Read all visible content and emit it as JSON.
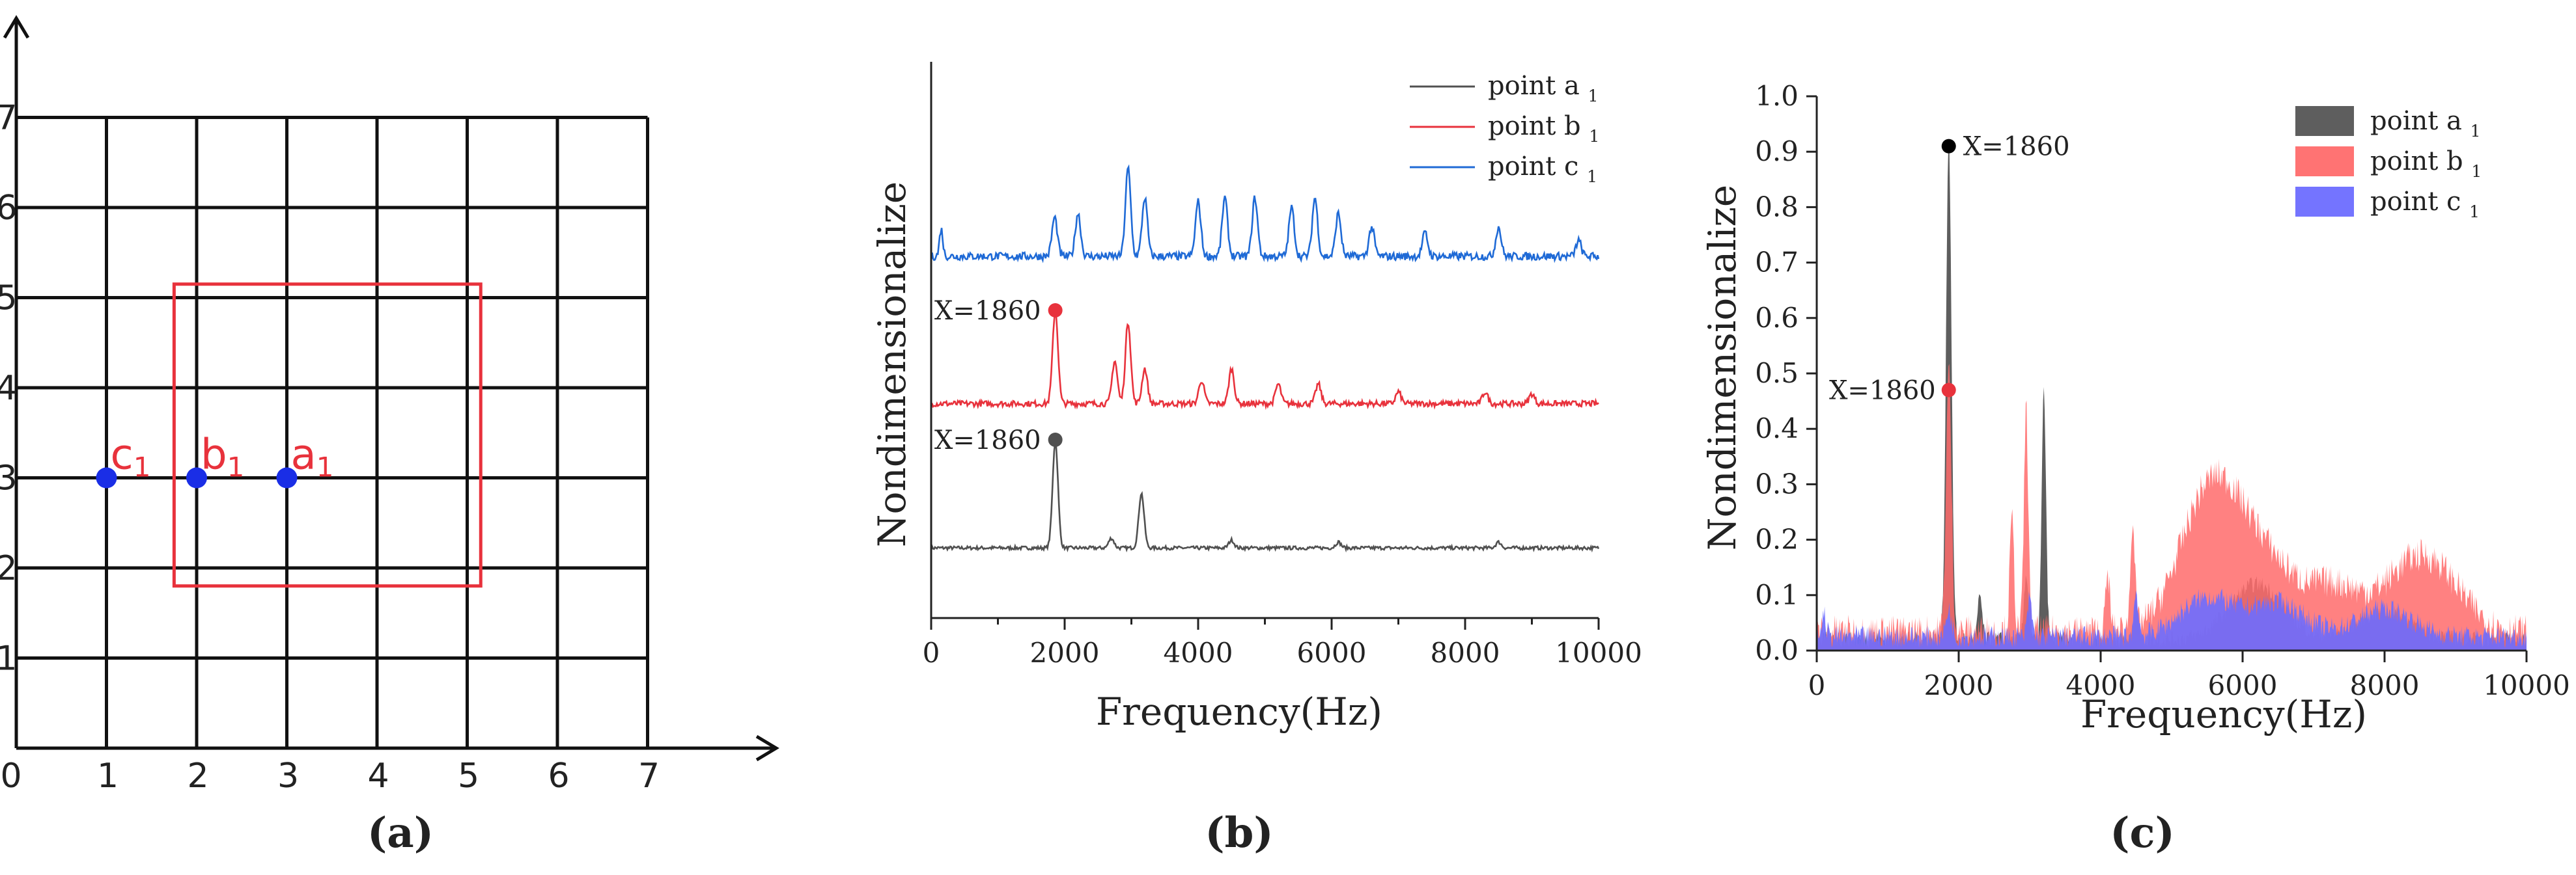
{
  "chart_data": [
    {
      "type": "grid-diagram",
      "panel_label": "(a)",
      "x_ticks": [
        "0",
        "1",
        "2",
        "3",
        "4",
        "5",
        "6",
        "7"
      ],
      "y_ticks": [
        "1",
        "2",
        "3",
        "4",
        "5",
        "6",
        "7"
      ],
      "grid_range": [
        0,
        7
      ],
      "highlight_box": {
        "x0": 1.75,
        "x1": 5.15,
        "y0": 1.8,
        "y1": 5.15,
        "color": "#e8323c"
      },
      "points": [
        {
          "label": "c",
          "sub": "1",
          "x": 1,
          "y": 3
        },
        {
          "label": "b",
          "sub": "1",
          "x": 2,
          "y": 3
        },
        {
          "label": "a",
          "sub": "1",
          "x": 3,
          "y": 3
        }
      ],
      "point_color": "#1a2ee6",
      "label_color": "#e8323c"
    },
    {
      "type": "line",
      "panel_label": "(b)",
      "xlabel": "Frequency(Hz)",
      "ylabel": "Nondimensionalize",
      "x_ticks": [
        "0",
        "2000",
        "4000",
        "6000",
        "8000",
        "10000"
      ],
      "xlim": [
        0,
        10000
      ],
      "legend_position": "top-right",
      "series": [
        {
          "name": "point a",
          "sub": "1",
          "color": "#505050",
          "peaks": [
            [
              1860,
              0.55
            ],
            [
              3150,
              0.28
            ],
            [
              2700,
              0.05
            ],
            [
              4500,
              0.04
            ],
            [
              6100,
              0.03
            ],
            [
              8500,
              0.03
            ]
          ]
        },
        {
          "name": "point b",
          "sub": "1",
          "color": "#e8323c",
          "peaks": [
            [
              1860,
              0.48
            ],
            [
              2950,
              0.42
            ],
            [
              2750,
              0.22
            ],
            [
              3200,
              0.18
            ],
            [
              4050,
              0.12
            ],
            [
              4500,
              0.18
            ],
            [
              5200,
              0.1
            ],
            [
              5800,
              0.1
            ],
            [
              7000,
              0.06
            ],
            [
              8300,
              0.06
            ],
            [
              9000,
              0.05
            ]
          ]
        },
        {
          "name": "point c",
          "sub": "1",
          "color": "#1f6ad6",
          "peaks": [
            [
              150,
              0.14
            ],
            [
              1850,
              0.2
            ],
            [
              2200,
              0.22
            ],
            [
              2950,
              0.45
            ],
            [
              3200,
              0.3
            ],
            [
              4000,
              0.28
            ],
            [
              4400,
              0.3
            ],
            [
              4850,
              0.3
            ],
            [
              5400,
              0.25
            ],
            [
              5750,
              0.3
            ],
            [
              6100,
              0.22
            ],
            [
              6600,
              0.15
            ],
            [
              7400,
              0.12
            ],
            [
              8500,
              0.15
            ],
            [
              9700,
              0.08
            ]
          ]
        }
      ],
      "annotations": [
        {
          "text": "X=1860",
          "series": "point b"
        },
        {
          "text": "X=1860",
          "series": "point a"
        }
      ]
    },
    {
      "type": "area",
      "panel_label": "(c)",
      "xlabel": "Frequency(Hz)",
      "ylabel": "Nondimensionalize",
      "x_ticks": [
        "0",
        "2000",
        "4000",
        "6000",
        "8000",
        "10000"
      ],
      "y_ticks": [
        "0.0",
        "0.1",
        "0.2",
        "0.3",
        "0.4",
        "0.5",
        "0.6",
        "0.7",
        "0.8",
        "0.9",
        "1.0"
      ],
      "xlim": [
        0,
        10000
      ],
      "ylim": [
        0,
        1.0
      ],
      "legend_position": "top-right",
      "series": [
        {
          "name": "point a",
          "sub": "1",
          "color": "#555555",
          "peaks": [
            [
              1860,
              0.91
            ],
            [
              3200,
              0.45
            ],
            [
              2950,
              0.12
            ],
            [
              2300,
              0.08
            ],
            [
              4500,
              0.08
            ],
            [
              6200,
              0.1
            ],
            [
              8000,
              0.05
            ]
          ]
        },
        {
          "name": "point b",
          "sub": "1",
          "color": "#ff6b6b",
          "peaks": [
            [
              1860,
              0.47
            ],
            [
              2950,
              0.4
            ],
            [
              2750,
              0.2
            ],
            [
              4450,
              0.2
            ],
            [
              4100,
              0.1
            ],
            [
              5400,
              0.16
            ],
            [
              5800,
              0.15
            ],
            [
              6400,
              0.1
            ],
            [
              7300,
              0.08
            ],
            [
              8300,
              0.09
            ],
            [
              8800,
              0.08
            ]
          ]
        },
        {
          "name": "point c",
          "sub": "1",
          "color": "#6d6dff",
          "peaks": [
            [
              100,
              0.04
            ],
            [
              1860,
              0.05
            ],
            [
              3000,
              0.07
            ],
            [
              4500,
              0.08
            ],
            [
              5500,
              0.07
            ],
            [
              6500,
              0.06
            ],
            [
              8000,
              0.05
            ]
          ]
        }
      ],
      "annotations": [
        {
          "text": "X=1860",
          "x": 1860,
          "y": 0.91,
          "color": "#000000"
        },
        {
          "text": "X=1860",
          "x": 1860,
          "y": 0.47,
          "color": "#e8323c"
        }
      ]
    }
  ]
}
